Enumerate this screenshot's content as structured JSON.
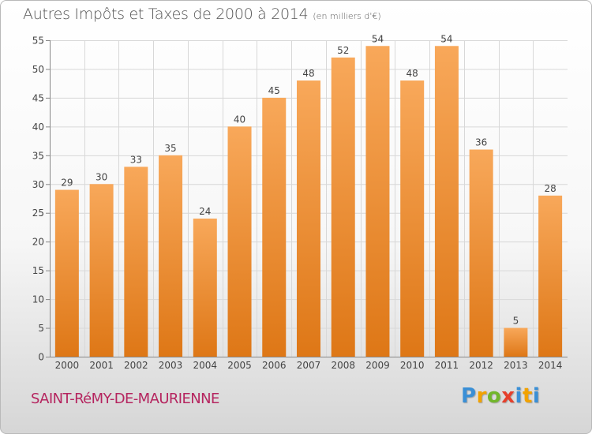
{
  "header": {
    "title": "Autres Impôts et Taxes de 2000 à 2014",
    "unit": "(en milliers d'€)"
  },
  "footer": {
    "commune": "SAINT-RéMY-DE-MAURIENNE",
    "logo_letters": [
      "P",
      "r",
      "o",
      "x",
      "i",
      "t",
      "i"
    ]
  },
  "colors": {
    "bar_top": "#f8a85a",
    "bar_bottom": "#de7716",
    "commune_text": "#b5255f"
  },
  "chart_data": {
    "type": "bar",
    "title": "Autres Impôts et Taxes de 2000 à 2014",
    "subtitle": "(en milliers d'€)",
    "categories": [
      "2000",
      "2001",
      "2002",
      "2003",
      "2004",
      "2005",
      "2006",
      "2007",
      "2008",
      "2009",
      "2010",
      "2011",
      "2012",
      "2013",
      "2014"
    ],
    "values": [
      29,
      30,
      33,
      35,
      24,
      40,
      45,
      48,
      52,
      54,
      48,
      54,
      36,
      5,
      28
    ],
    "data_labels": [
      "29",
      "30",
      "33",
      "35",
      "24",
      "40",
      "45",
      "48",
      "52",
      "54",
      "48",
      "54",
      "36",
      "5",
      "28"
    ],
    "yticks": [
      0,
      5,
      10,
      15,
      20,
      25,
      30,
      35,
      40,
      45,
      50,
      55
    ],
    "ylim": [
      0,
      55
    ],
    "grid": true,
    "legend": "none"
  }
}
